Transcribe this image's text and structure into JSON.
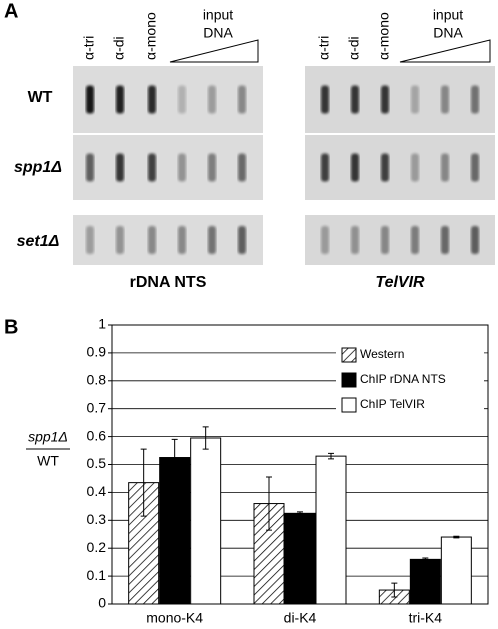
{
  "panel_a": {
    "label": "A",
    "columns": [
      "α-tri",
      "α-di",
      "α-mono"
    ],
    "input_label": [
      "input",
      "DNA"
    ],
    "rows": [
      "WT",
      "spp1Δ",
      "set1Δ"
    ],
    "blots": [
      "rDNA NTS",
      "TelVIR"
    ]
  },
  "chart_data": {
    "type": "bar",
    "panel_label": "B",
    "ylabel": [
      "spp1Δ",
      "WT"
    ],
    "categories": [
      "mono-K4",
      "di-K4",
      "tri-K4"
    ],
    "series": [
      {
        "name": "Western",
        "color": "#000000",
        "hatch": true,
        "values": [
          0.435,
          0.36,
          0.05
        ],
        "errors": [
          0.12,
          0.095,
          0.025
        ]
      },
      {
        "name": "ChIP rDNA NTS",
        "color": "#000000",
        "values": [
          0.525,
          0.325,
          0.16
        ],
        "errors": [
          0.065,
          0.005,
          0.005
        ]
      },
      {
        "name": "ChIP TelVIR",
        "color": "#ffffff",
        "values": [
          0.595,
          0.53,
          0.24
        ],
        "errors": [
          0.04,
          0.01,
          0.003
        ]
      }
    ],
    "ylim": [
      0,
      1
    ],
    "yticks": [
      0,
      0.1,
      0.2,
      0.3,
      0.4,
      0.5,
      0.6,
      0.7,
      0.8,
      0.9,
      1
    ],
    "grid": true
  }
}
